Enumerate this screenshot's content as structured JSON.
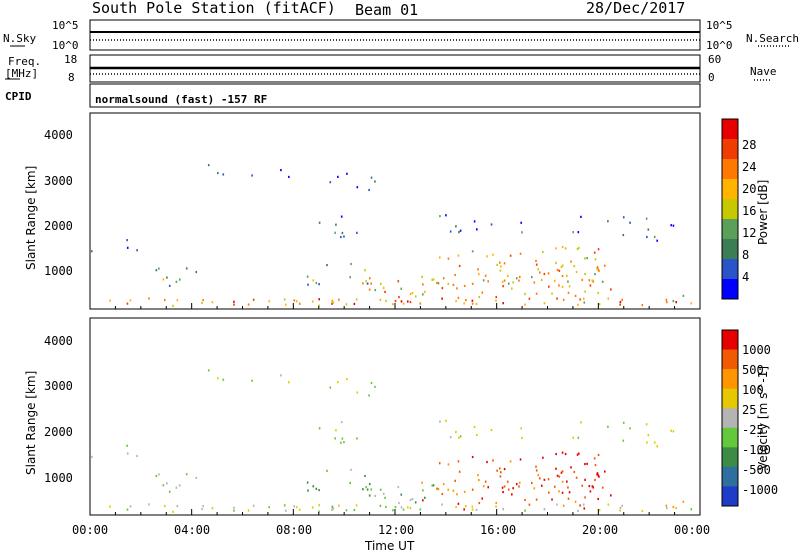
{
  "header": {
    "station": "South Pole Station (fitACF)",
    "beam": "Beam 01",
    "date": "28/Dec/2017"
  },
  "summary": {
    "nsky_label": "N.Sky",
    "nsearch_label": "N.Search",
    "nsky_ticks": [
      "10^5",
      "10^0"
    ],
    "nsearch_ticks": [
      "10^5",
      "10^0"
    ],
    "freq_label_1": "Freq.",
    "freq_label_2": "[MHz]",
    "freq_ticks": [
      "18",
      "8"
    ],
    "nave_label": "Nave",
    "nave_ticks": [
      "60",
      "0"
    ],
    "cpid_label": "CPID",
    "cpid_value": "normalsound (fast) -157 RF"
  },
  "colors": {
    "power": [
      "#0000ff",
      "#2a55c8",
      "#3b7d55",
      "#5aa05a",
      "#c8c800",
      "#ffb400",
      "#ff7800",
      "#f03c00",
      "#e60000"
    ],
    "velocity": [
      "#1e3cc8",
      "#2f6fa0",
      "#3c8c46",
      "#64c83c",
      "#b4b4b4",
      "#e6c800",
      "#ff9600",
      "#f05a00",
      "#e60000"
    ]
  },
  "chart_data": [
    {
      "type": "heatmap",
      "name": "power",
      "ylabel": "Slant Range [km]",
      "ylim": [
        180,
        4600
      ],
      "yticks": [
        "1000",
        "2000",
        "3000",
        "4000"
      ],
      "colorbar_label": "Power [dB]",
      "colorbar_ticks": [
        "4",
        "8",
        "12",
        "16",
        "20",
        "24",
        "28"
      ],
      "colorbar_range": [
        0,
        32
      ]
    },
    {
      "type": "heatmap",
      "name": "velocity",
      "ylabel": "Slant Range [km]",
      "ylim": [
        180,
        4600
      ],
      "yticks": [
        "1000",
        "2000",
        "3000",
        "4000"
      ],
      "colorbar_label": "Velocity [m s^-1]",
      "colorbar_ticks": [
        "-1000",
        "-500",
        "-100",
        "-25",
        "25",
        "100",
        "500",
        "1000"
      ]
    }
  ],
  "xaxis": {
    "label": "Time UT",
    "ticks": [
      "00:00",
      "04:00",
      "08:00",
      "12:00",
      "16:00",
      "20:00",
      "00:00"
    ]
  }
}
